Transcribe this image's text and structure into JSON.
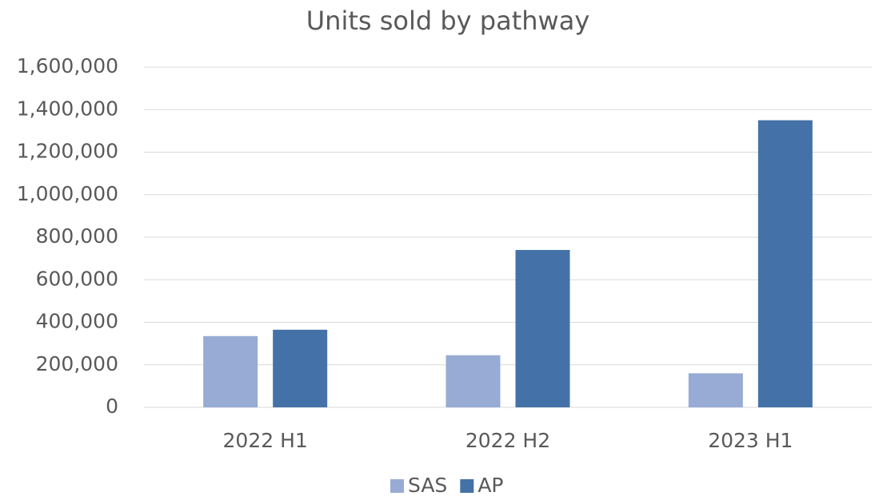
{
  "chart_data": {
    "type": "bar",
    "title": "Units sold by pathway",
    "categories": [
      "2022 H1",
      "2022 H2",
      "2023 H1"
    ],
    "series": [
      {
        "name": "SAS",
        "color": "#97abd4",
        "values": [
          335000,
          245000,
          160000
        ]
      },
      {
        "name": "AP",
        "color": "#4472a8",
        "values": [
          365000,
          740000,
          1350000
        ]
      }
    ],
    "ylim": [
      0,
      1600000
    ],
    "yticks": [
      0,
      {
        "value": 200000,
        "label": "200,000"
      },
      {
        "value": 400000,
        "label": "400,000"
      },
      {
        "value": 600000,
        "label": "600,000"
      },
      {
        "value": 800000,
        "label": "800,000"
      },
      {
        "value": 1000000,
        "label": "1,000,000"
      },
      {
        "value": 1200000,
        "label": "1,200,000"
      },
      {
        "value": 1400000,
        "label": "1,400,000"
      },
      {
        "value": 1600000,
        "label": "1,600,000"
      }
    ],
    "grid": true,
    "legend": "bottom"
  }
}
